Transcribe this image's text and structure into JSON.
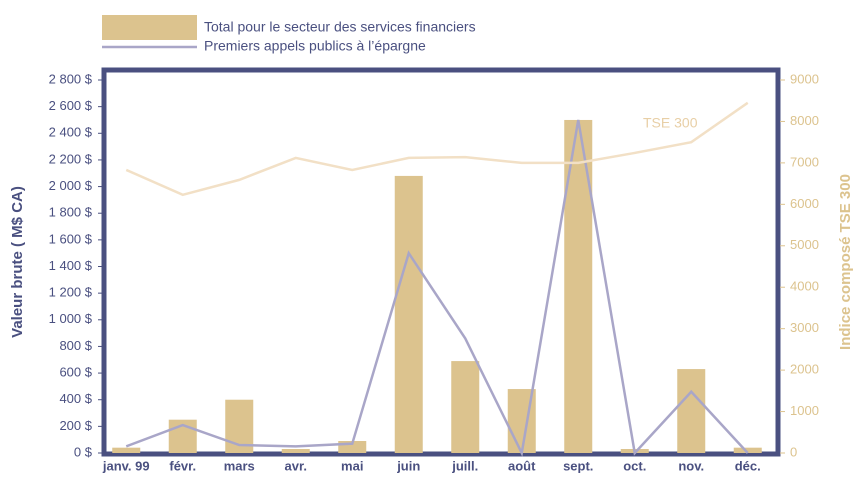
{
  "chart_data": {
    "type": "bar_line",
    "ylabel": "Valeur brute ( M$ CA)",
    "y2label": "Indice composé TSE 300",
    "categories": [
      "janv. 99",
      "févr.",
      "mars",
      "avr.",
      "mai",
      "juin",
      "juill.",
      "août",
      "sept.",
      "oct.",
      "nov.",
      "déc."
    ],
    "series": [
      {
        "name": "Total pour le secteur des services financiers",
        "color": "#dcc38e",
        "kind": "bar",
        "axis": "y",
        "values": [
          40,
          250,
          400,
          30,
          90,
          2080,
          690,
          480,
          2500,
          30,
          630,
          40
        ]
      },
      {
        "name": "Premiers appels publics à l’épargne",
        "color": "#a9a6c8",
        "kind": "line",
        "axis": "y",
        "values": [
          50,
          210,
          60,
          50,
          70,
          1500,
          860,
          0,
          2500,
          0,
          460,
          0
        ]
      },
      {
        "name": "TSE 300",
        "color": "#f2e0c6",
        "kind": "line",
        "axis": "y2",
        "values": [
          6830,
          6230,
          6590,
          7120,
          6830,
          7120,
          7140,
          7000,
          7000,
          7240,
          7500,
          8450
        ]
      }
    ],
    "ylim": [
      0,
      2800
    ],
    "yticks": [
      {
        "value": 0,
        "label": "0 $"
      },
      {
        "value": 200,
        "label": "200 $"
      },
      {
        "value": 400,
        "label": "400 $"
      },
      {
        "value": 600,
        "label": "600 $"
      },
      {
        "value": 800,
        "label": "800 $"
      },
      {
        "value": 1000,
        "label": "1 000 $"
      },
      {
        "value": 1200,
        "label": "1 200 $"
      },
      {
        "value": 1400,
        "label": "1 400 $"
      },
      {
        "value": 1600,
        "label": "1 600 $"
      },
      {
        "value": 1800,
        "label": "1 800 $"
      },
      {
        "value": 2000,
        "label": "2 000 $"
      },
      {
        "value": 2200,
        "label": "2 200 $"
      },
      {
        "value": 2400,
        "label": "2 400 $"
      },
      {
        "value": 2600,
        "label": "2 600 $"
      },
      {
        "value": 2800,
        "label": "2 800 $"
      }
    ],
    "y2lim": [
      0,
      9000
    ],
    "y2ticks": [
      0,
      1000,
      2000,
      3000,
      4000,
      5000,
      6000,
      7000,
      8000,
      9000
    ],
    "grid": false
  }
}
